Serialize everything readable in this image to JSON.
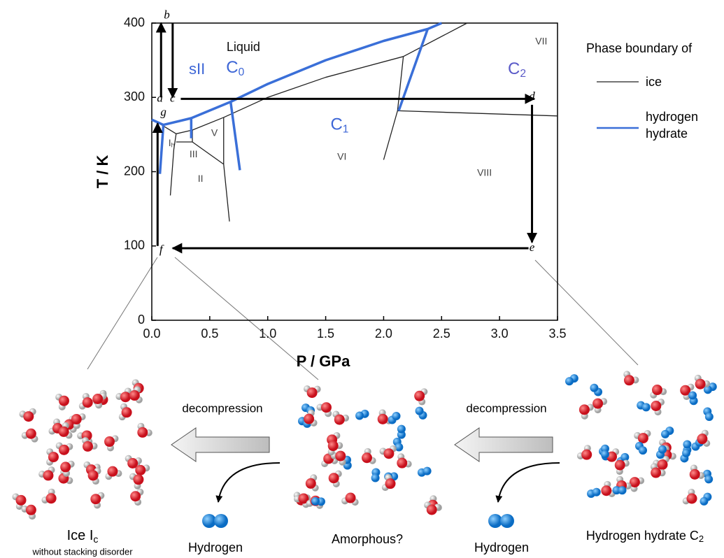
{
  "chart_data": {
    "type": "line",
    "xlabel": "P / GPa",
    "ylabel": "T / K",
    "xlim": [
      0,
      3.5
    ],
    "ylim": [
      0,
      400
    ],
    "xticks": [
      {
        "value": 0,
        "label": "0.0"
      },
      0.5,
      {
        "value": 1,
        "label": "1.0"
      },
      1.5,
      {
        "value": 2,
        "label": "2.0"
      },
      2.5,
      {
        "value": 3,
        "label": "3.0"
      },
      3.5
    ],
    "yticks": [
      0,
      100,
      200,
      300,
      400
    ],
    "legend_title": "Phase boundary of",
    "legend": "right",
    "series": [
      {
        "name": "ice",
        "color": "#222222",
        "x": [
          0,
          0.21,
          0.35,
          0.62,
          1.0,
          1.5,
          2.17,
          2.72,
          null,
          0.21,
          0.19,
          0.16,
          null,
          0.21,
          0.35,
          0.62,
          null,
          0.35,
          0.35,
          null,
          0.62,
          0.62,
          0.67,
          null,
          2.17,
          2.12,
          2.0,
          null,
          2.12,
          3.5
        ],
        "values": [
          271,
          251,
          256,
          273,
          300,
          327,
          355,
          400,
          null,
          251,
          230,
          168,
          null,
          240,
          240,
          210,
          null,
          256,
          240,
          null,
          273,
          210,
          133,
          null,
          355,
          282,
          216,
          null,
          282,
          275
        ]
      },
      {
        "name": "hydrogen hydrate",
        "color": "#3a6fd8",
        "x": [
          0,
          0.1,
          0.34,
          0.68,
          1.0,
          1.5,
          2.0,
          2.38,
          2.5,
          null,
          0.1,
          0.07,
          null,
          0.34,
          0.34,
          null,
          0.68,
          0.76,
          null,
          2.38,
          2.13
        ],
        "values": [
          270,
          263,
          272,
          294,
          318,
          350,
          376,
          392,
          400,
          null,
          263,
          197,
          null,
          272,
          245,
          null,
          294,
          202,
          null,
          392,
          282
        ]
      }
    ],
    "annotations": [
      {
        "text": "Liquid",
        "x": 0.79,
        "y": 367,
        "color": "#111111",
        "size": 18
      },
      {
        "text": "sII",
        "x": 0.39,
        "y": 337,
        "color": "#3d66d6",
        "size": 22
      },
      {
        "text": "C",
        "sub": "0",
        "x": 0.72,
        "y": 339,
        "color": "#3d66d6",
        "size": 24
      },
      {
        "text": "C",
        "sub": "2",
        "x": 3.15,
        "y": 337,
        "color": "#5a5ac8",
        "size": 24
      },
      {
        "text": "C",
        "sub": "1",
        "x": 1.62,
        "y": 262,
        "color": "#3d66d6",
        "size": 24
      },
      {
        "text": "VII",
        "x": 3.36,
        "y": 375,
        "color": "#444444",
        "size": 14
      },
      {
        "text": "VI",
        "x": 1.64,
        "y": 220,
        "color": "#444444",
        "size": 14
      },
      {
        "text": "VIII",
        "x": 2.87,
        "y": 198,
        "color": "#444444",
        "size": 14
      },
      {
        "text": "V",
        "x": 0.54,
        "y": 252,
        "color": "#444444",
        "size": 14
      },
      {
        "text": "III",
        "x": 0.36,
        "y": 223,
        "color": "#444444",
        "size": 14
      },
      {
        "text": "II",
        "x": 0.42,
        "y": 190,
        "color": "#444444",
        "size": 14
      },
      {
        "text": "I",
        "sub": "h",
        "x": 0.17,
        "y": 238,
        "color": "#444444",
        "size": 14
      }
    ],
    "path_points": [
      {
        "label": "a",
        "x": 0.07,
        "y": 298
      },
      {
        "label": "b",
        "x": 0.13,
        "y": 410
      },
      {
        "label": "c",
        "x": 0.18,
        "y": 298
      },
      {
        "label": "d",
        "x": 3.28,
        "y": 300
      },
      {
        "label": "e",
        "x": 3.28,
        "y": 97
      },
      {
        "label": "f",
        "x": 0.08,
        "y": 94
      },
      {
        "label": "g",
        "x": 0.1,
        "y": 279
      }
    ],
    "arrows": [
      {
        "x": [
          0.08,
          0.08
        ],
        "values": [
          300,
          400
        ]
      },
      {
        "x": [
          0.18,
          0.18
        ],
        "values": [
          400,
          300
        ]
      },
      {
        "x": [
          0.25,
          3.3
        ],
        "values": [
          298,
          298
        ]
      },
      {
        "x": [
          3.28,
          3.28
        ],
        "values": [
          290,
          105
        ]
      },
      {
        "x": [
          3.25,
          0.18
        ],
        "values": [
          97,
          97
        ]
      },
      {
        "x": [
          0.05,
          0.05
        ],
        "values": [
          100,
          265
        ]
      }
    ]
  },
  "illustration": {
    "steps": [
      "decompression",
      "decompression"
    ],
    "released": [
      "Hydrogen",
      "Hydrogen"
    ],
    "states": [
      {
        "label": "Ice I",
        "sub": "c",
        "note": "without stacking disorder"
      },
      {
        "label": "Amorphous?"
      },
      {
        "label": "Hydrogen hydrate C",
        "sub": "2"
      }
    ]
  }
}
